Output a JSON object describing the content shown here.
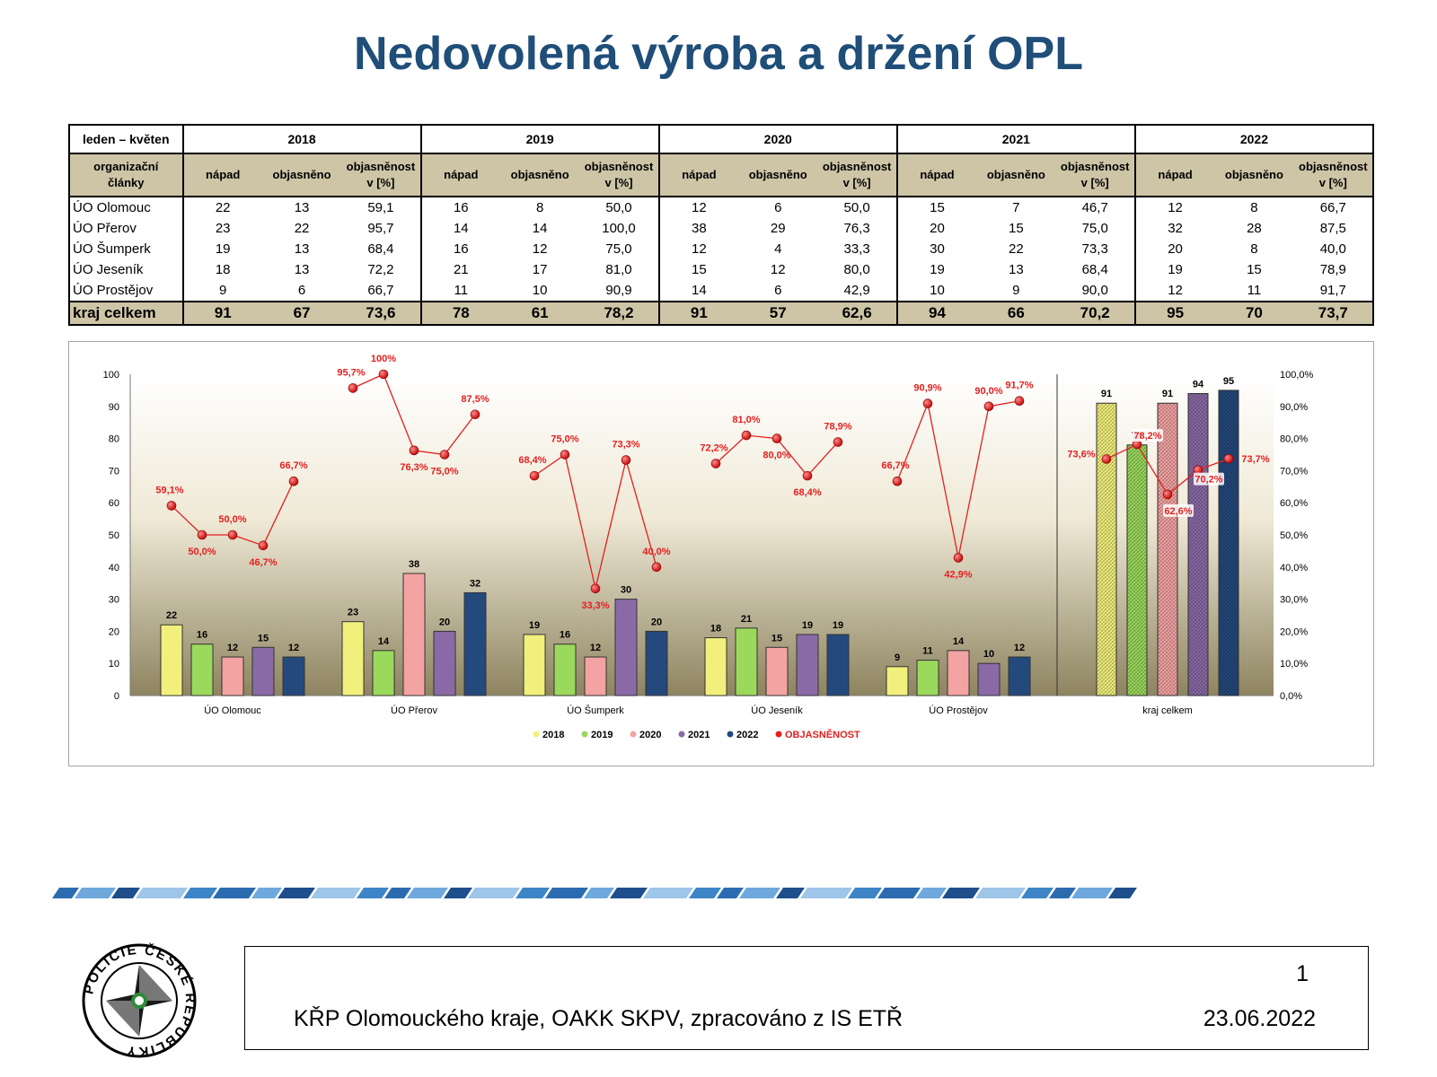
{
  "title": "Nedovolená výroba a držení OPL",
  "table": {
    "period_label": "leden – květen",
    "years": [
      "2018",
      "2019",
      "2020",
      "2021",
      "2022"
    ],
    "org_header": [
      "organizační",
      "články"
    ],
    "col_napad": "nápad",
    "col_objasneno": "objasněno",
    "col_pct": [
      "objasněnost",
      "v [%]"
    ],
    "rows": [
      {
        "name": "ÚO Olomouc",
        "values": [
          "22",
          "13",
          "59,1",
          "16",
          "8",
          "50,0",
          "12",
          "6",
          "50,0",
          "15",
          "7",
          "46,7",
          "12",
          "8",
          "66,7"
        ]
      },
      {
        "name": "ÚO Přerov",
        "values": [
          "23",
          "22",
          "95,7",
          "14",
          "14",
          "100,0",
          "38",
          "29",
          "76,3",
          "20",
          "15",
          "75,0",
          "32",
          "28",
          "87,5"
        ]
      },
      {
        "name": "ÚO Šumperk",
        "values": [
          "19",
          "13",
          "68,4",
          "16",
          "12",
          "75,0",
          "12",
          "4",
          "33,3",
          "30",
          "22",
          "73,3",
          "20",
          "8",
          "40,0"
        ]
      },
      {
        "name": "ÚO Jeseník",
        "values": [
          "18",
          "13",
          "72,2",
          "21",
          "17",
          "81,0",
          "15",
          "12",
          "80,0",
          "19",
          "13",
          "68,4",
          "19",
          "15",
          "78,9"
        ]
      },
      {
        "name": "ÚO Prostějov",
        "values": [
          "9",
          "6",
          "66,7",
          "11",
          "10",
          "90,9",
          "14",
          "6",
          "42,9",
          "10",
          "9",
          "90,0",
          "12",
          "11",
          "91,7"
        ]
      }
    ],
    "total": {
      "name": "kraj celkem",
      "values": [
        "91",
        "67",
        "73,6",
        "78",
        "61",
        "78,2",
        "91",
        "57",
        "62,6",
        "94",
        "66",
        "70,2",
        "95",
        "70",
        "73,7"
      ]
    }
  },
  "chart_data": {
    "type": "bar",
    "categories": [
      "ÚO Olomouc",
      "ÚO Přerov",
      "ÚO Šumperk",
      "ÚO Jeseník",
      "ÚO Prostějov",
      "kraj celkem"
    ],
    "series": [
      {
        "name": "2018",
        "values": [
          22,
          23,
          19,
          18,
          9,
          91
        ],
        "color": "#f2f07c"
      },
      {
        "name": "2019",
        "values": [
          16,
          14,
          16,
          21,
          11,
          78
        ],
        "color": "#9bd95c"
      },
      {
        "name": "2020",
        "values": [
          12,
          38,
          12,
          15,
          14,
          91
        ],
        "color": "#f4a3a3"
      },
      {
        "name": "2021",
        "values": [
          15,
          20,
          30,
          19,
          10,
          94
        ],
        "color": "#8a6aa6"
      },
      {
        "name": "2022",
        "values": [
          12,
          32,
          20,
          19,
          12,
          95
        ],
        "color": "#24497d"
      }
    ],
    "line_series": {
      "name": "OBJASNĚNOST",
      "color": "#e32020",
      "values": [
        [
          59.1,
          50.0,
          50.0,
          46.7,
          66.7
        ],
        [
          95.7,
          100,
          76.3,
          75.0,
          87.5
        ],
        [
          68.4,
          75.0,
          33.3,
          73.3,
          40.0
        ],
        [
          72.2,
          81.0,
          80.0,
          68.4,
          78.9
        ],
        [
          66.7,
          90.9,
          42.9,
          90.0,
          91.7
        ],
        [
          73.6,
          78.2,
          62.6,
          70.2,
          73.7
        ]
      ],
      "labels": [
        [
          "59,1%",
          "50,0%",
          "50,0%",
          "46,7%",
          "66,7%"
        ],
        [
          "95,7%",
          "100%",
          "76,3%",
          "75,0%",
          "87,5%"
        ],
        [
          "68,4%",
          "75,0%",
          "33,3%",
          "73,3%",
          "40,0%"
        ],
        [
          "72,2%",
          "81,0%",
          "80,0%",
          "68,4%",
          "78,9%"
        ],
        [
          "66,7%",
          "90,9%",
          "42,9%",
          "90,0%",
          "91,7%"
        ],
        [
          "73,6%",
          "78,2%",
          "62,6%",
          "70,2%",
          "73,7%"
        ]
      ]
    },
    "ylim": [
      0,
      100
    ],
    "yticks": [
      "0",
      "10",
      "20",
      "30",
      "40",
      "50",
      "60",
      "70",
      "80",
      "90",
      "100"
    ],
    "y2ticks": [
      "0,0%",
      "10,0%",
      "20,0%",
      "30,0%",
      "40,0%",
      "50,0%",
      "60,0%",
      "70,0%",
      "80,0%",
      "90,0%",
      "100,0%"
    ],
    "legend": [
      "2018",
      "2019",
      "2020",
      "2021",
      "2022",
      "OBJASNĚNOST"
    ],
    "legend_position": "bottom"
  },
  "footer": {
    "text": "KŘP Olomouckého kraje, OAKK SKPV, zpracováno z IS ETŘ",
    "date": "23.06.2022",
    "page": "1"
  },
  "logo_text": "POLICIE ČESKÉ REPUBLIKY"
}
